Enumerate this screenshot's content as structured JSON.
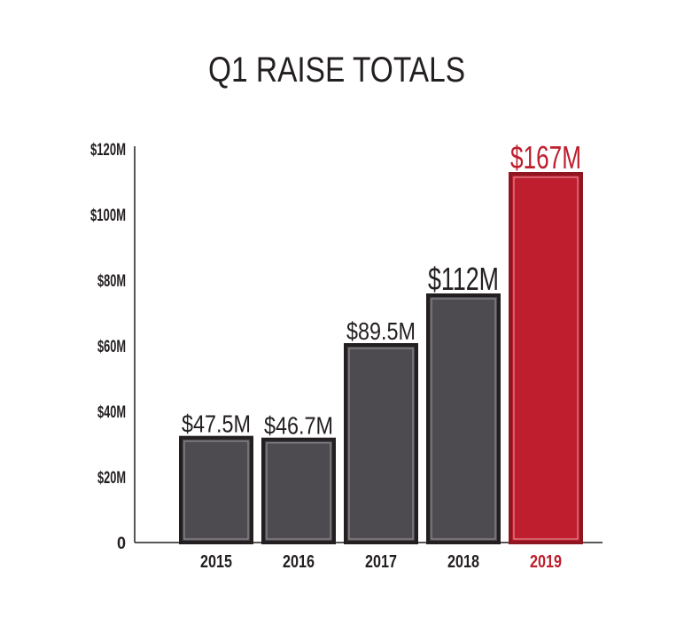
{
  "chart_data": {
    "type": "bar",
    "title": "Q1 RAISE TOTALS",
    "categories": [
      "2015",
      "2016",
      "2017",
      "2018",
      "2019"
    ],
    "values": [
      47.5,
      46.7,
      89.5,
      112,
      167
    ],
    "value_labels": [
      "$47.5M",
      "$46.7M",
      "$89.5M",
      "$112M",
      "$167M"
    ],
    "highlight_category": "2019",
    "yticks": [
      "0",
      "$20M",
      "$40M",
      "$60M",
      "$80M",
      "$100M",
      "$120M"
    ],
    "xlabel": "",
    "ylabel": "",
    "grid": false,
    "colors": {
      "bar": "#4d4b50",
      "bar_border": "#231f20",
      "highlight": "#be1e2d",
      "text": "#231f20"
    }
  }
}
